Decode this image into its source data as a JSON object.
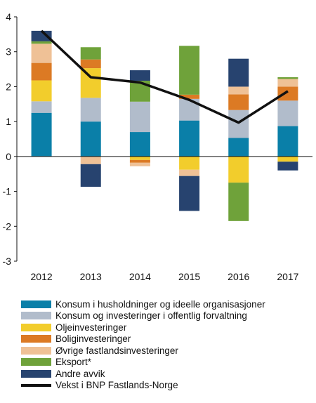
{
  "chart_data": {
    "type": "bar",
    "stacked": true,
    "categories": [
      "2012",
      "2013",
      "2014",
      "2015",
      "2016",
      "2017"
    ],
    "ylim": [
      -3,
      4
    ],
    "yticks": [
      -3,
      -2,
      -1,
      0,
      1,
      2,
      3,
      4
    ],
    "grid": false,
    "legend_placement": "bottom",
    "series": [
      {
        "name": "Konsum i husholdninger og ideelle organisasjoner",
        "color": "#0a7fa8",
        "values": [
          1.25,
          1.0,
          0.7,
          1.03,
          0.53,
          0.87
        ]
      },
      {
        "name": "Konsum og investeringer i offentlig forvaltning",
        "color": "#b1bccb",
        "values": [
          0.33,
          0.68,
          0.87,
          0.62,
          0.8,
          0.73
        ]
      },
      {
        "name": "Oljeinvesteringer",
        "color": "#f2cd2c",
        "values": [
          0.6,
          0.85,
          -0.1,
          -0.38,
          -0.75,
          -0.15
        ]
      },
      {
        "name": "Boliginvesteringer",
        "color": "#dc7a24",
        "values": [
          0.5,
          0.25,
          -0.08,
          0.12,
          0.45,
          0.4
        ]
      },
      {
        "name": "Øvrige fastlandsinvesteringer",
        "color": "#efc196",
        "values": [
          0.55,
          -0.22,
          -0.1,
          -0.18,
          0.22,
          0.22
        ]
      },
      {
        "name": "Eksport*",
        "color": "#6fa23a",
        "values": [
          0.07,
          0.35,
          0.6,
          1.4,
          -1.1,
          0.05
        ]
      },
      {
        "name": "Andre avvik",
        "color": "#27436f",
        "values": [
          0.3,
          -0.65,
          0.3,
          -1.0,
          0.8,
          -0.25
        ]
      }
    ],
    "line": {
      "name": "Vekst i BNP Fastlands-Norge",
      "color": "#111111",
      "values": [
        3.6,
        2.27,
        2.12,
        1.62,
        0.97,
        1.87
      ]
    }
  }
}
